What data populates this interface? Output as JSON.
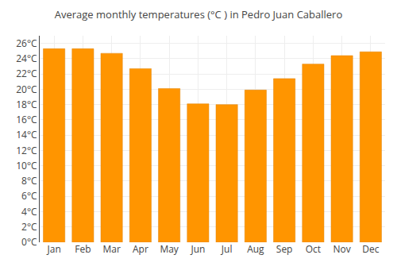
{
  "chart_data": {
    "type": "bar",
    "title": "Average monthly temperatures (°C ) in Pedro Juan Caballero",
    "categories": [
      "Jan",
      "Feb",
      "Mar",
      "Apr",
      "May",
      "Jun",
      "Jul",
      "Aug",
      "Sep",
      "Oct",
      "Nov",
      "Dec"
    ],
    "values": [
      25.3,
      25.3,
      24.7,
      22.7,
      20.1,
      18.1,
      18.0,
      19.9,
      21.4,
      23.3,
      24.4,
      24.9
    ],
    "color": "#FF9500",
    "ylim": [
      0,
      27
    ],
    "yticks": [
      {
        "value": 0,
        "label": "0°C"
      },
      {
        "value": 2,
        "label": "2°C"
      },
      {
        "value": 4,
        "label": "4°C"
      },
      {
        "value": 6,
        "label": "6°C"
      },
      {
        "value": 8,
        "label": "8°C"
      },
      {
        "value": 10,
        "label": "10°C"
      },
      {
        "value": 12,
        "label": "12°C"
      },
      {
        "value": 14,
        "label": "14°C"
      },
      {
        "value": 16,
        "label": "16°C"
      },
      {
        "value": 18,
        "label": "18°C"
      },
      {
        "value": 20,
        "label": "20°C"
      },
      {
        "value": 22,
        "label": "22°C"
      },
      {
        "value": 24,
        "label": "24°C"
      },
      {
        "value": 26,
        "label": "26°C"
      }
    ],
    "grid": true
  }
}
